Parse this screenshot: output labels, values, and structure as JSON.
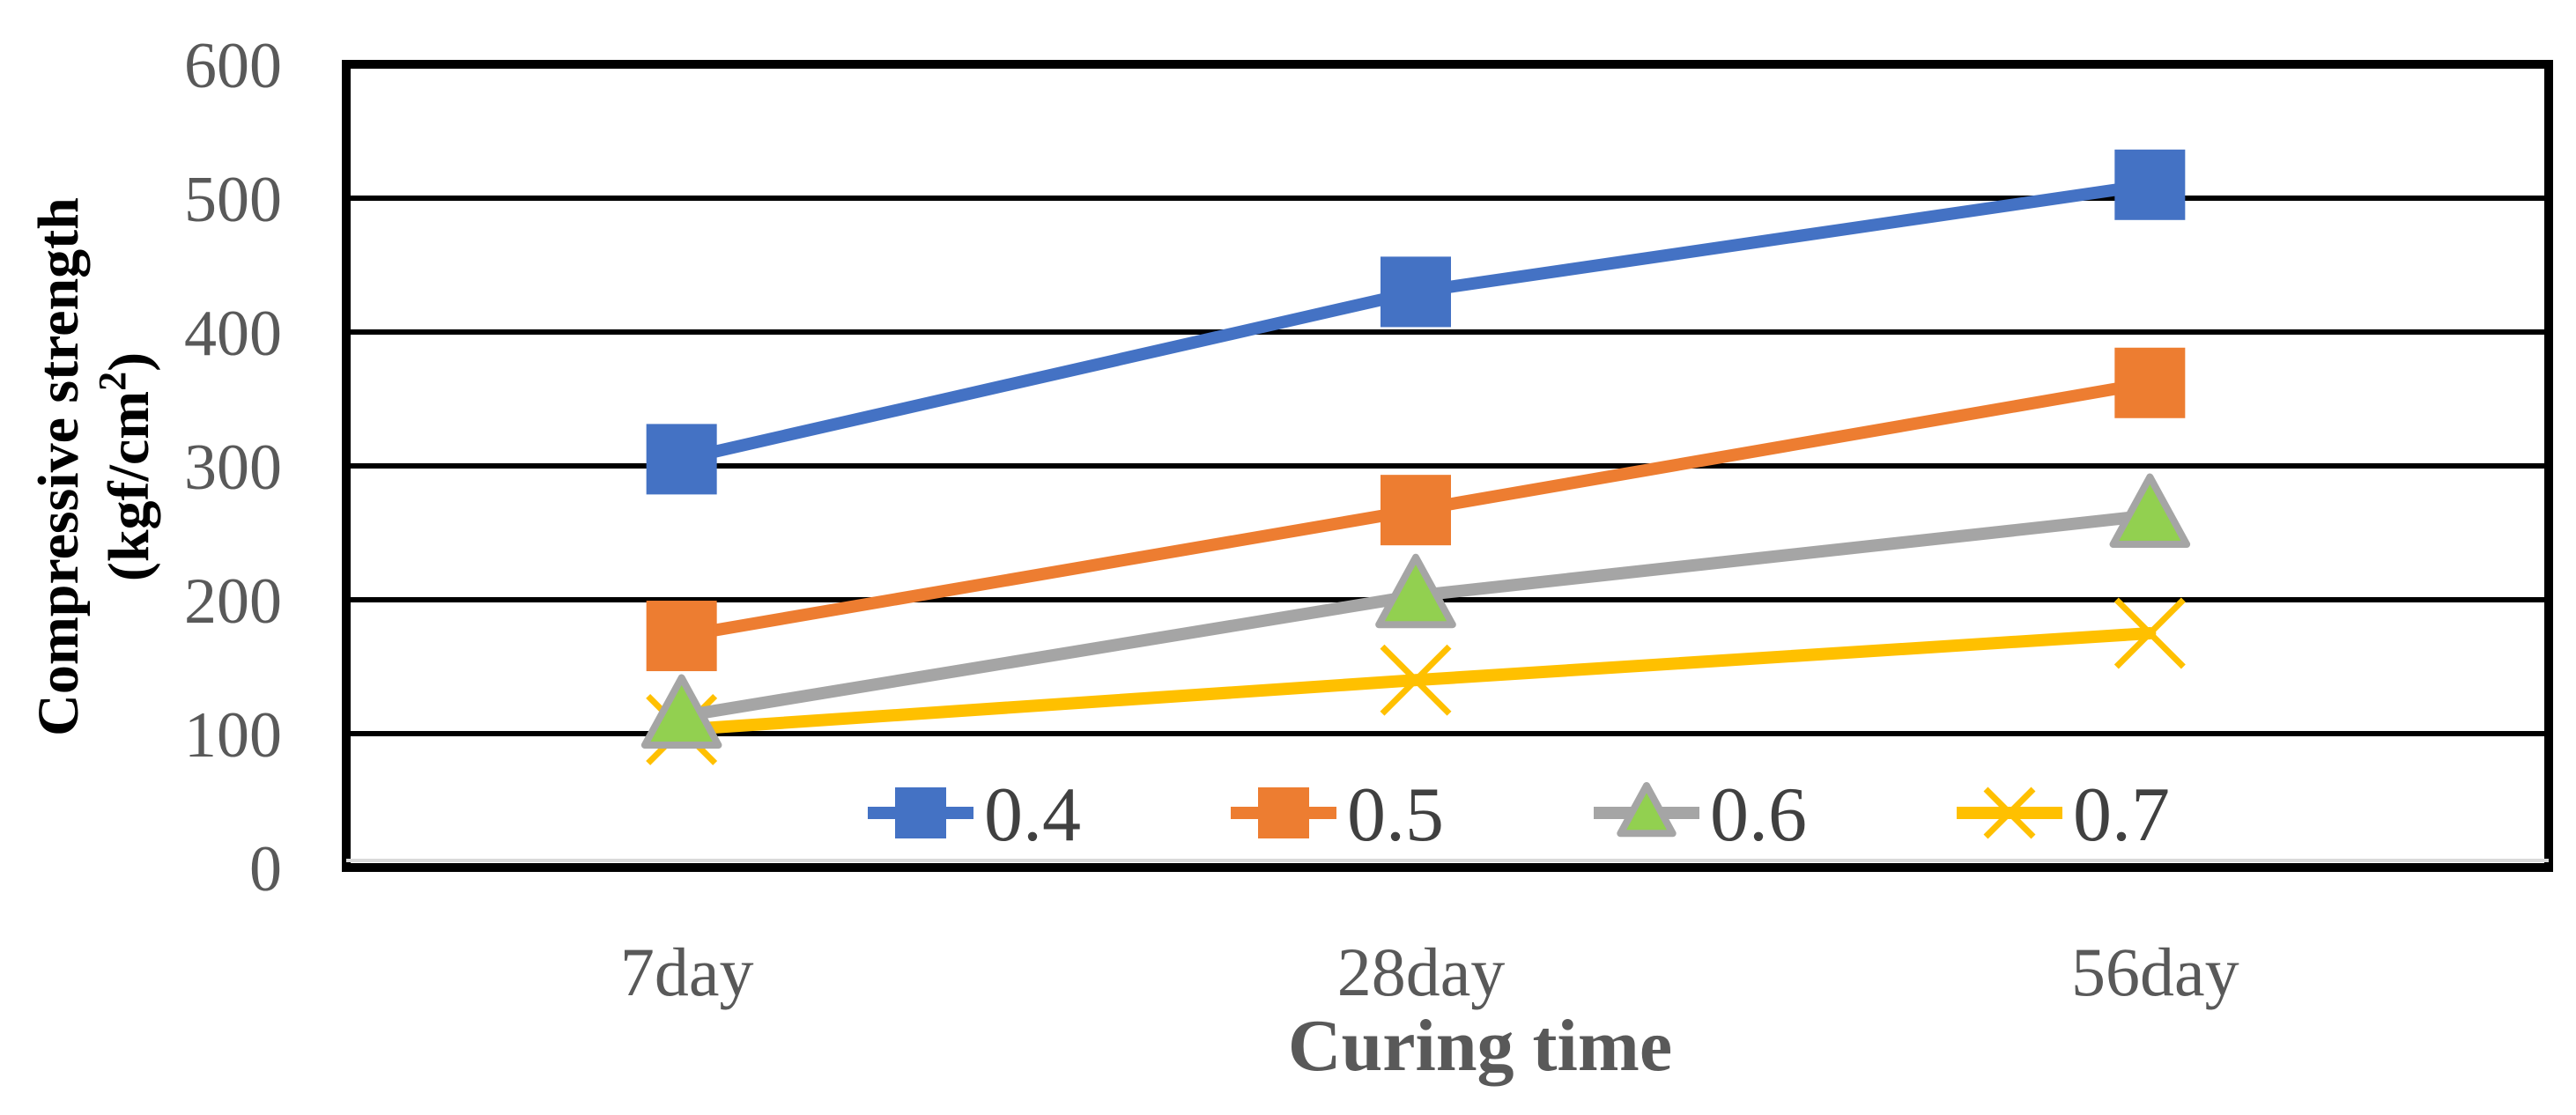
{
  "chart_data": {
    "type": "line",
    "title": "",
    "xlabel": "Curing time",
    "ylabel_line1": "Compressive strength",
    "ylabel_line2_prefix": "(kgf/cm",
    "ylabel_line2_sup": "2",
    "ylabel_line2_suffix": ")",
    "categories": [
      "7day",
      "28day",
      "56day"
    ],
    "ylim": [
      0,
      600
    ],
    "yticks": [
      0,
      100,
      200,
      300,
      400,
      500,
      600
    ],
    "grid": true,
    "legend_position": "bottom-inside",
    "series": [
      {
        "name": "0.4",
        "values": [
          305,
          430,
          510
        ],
        "color": "#4472C4",
        "marker": "square"
      },
      {
        "name": "0.5",
        "values": [
          173,
          267,
          362
        ],
        "color": "#ED7D31",
        "marker": "square"
      },
      {
        "name": "0.6",
        "values": [
          113,
          203,
          263
        ],
        "color": "#A5A5A5",
        "marker": "triangle",
        "marker_fill": "#92D050"
      },
      {
        "name": "0.7",
        "values": [
          103,
          140,
          175
        ],
        "color": "#FFC000",
        "marker": "x"
      }
    ]
  }
}
